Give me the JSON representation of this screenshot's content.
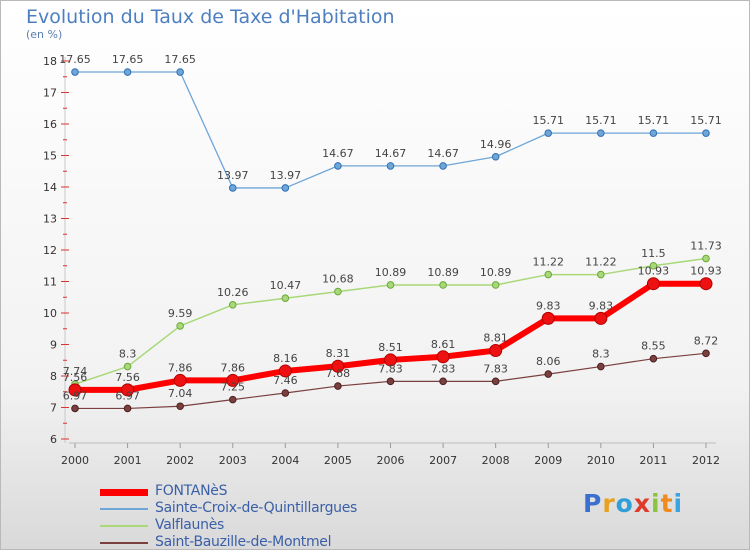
{
  "title": "Evolution du Taux de Taxe d'Habitation",
  "subtitle": "(en %)",
  "logo": {
    "text": "Proxiti",
    "letters": [
      {
        "ch": "P",
        "color": "#3b6fd0"
      },
      {
        "ch": "r",
        "color": "#e8a020"
      },
      {
        "ch": "o",
        "color": "#2f9fd8"
      },
      {
        "ch": "x",
        "color": "#e03a2a"
      },
      {
        "ch": "i",
        "color": "#8bc53f"
      },
      {
        "ch": "t",
        "color": "#f08a1c"
      },
      {
        "ch": "i",
        "color": "#3aa3e0"
      }
    ]
  },
  "chart_data": {
    "type": "line",
    "title": "Evolution du Taux de Taxe d'Habitation",
    "ylabel": "(en %)",
    "x": [
      "2000",
      "2001",
      "2002",
      "2003",
      "2004",
      "2005",
      "2006",
      "2007",
      "2008",
      "2009",
      "2010",
      "2011",
      "2012"
    ],
    "ylim": [
      6,
      18
    ],
    "yticks": [
      6,
      7,
      8,
      9,
      10,
      11,
      12,
      13,
      14,
      15,
      16,
      17,
      18
    ],
    "grid": false,
    "legend": "bottom-left",
    "series": [
      {
        "name": "FONTANèS",
        "color": "#ff0000",
        "width": 6,
        "labels": [
          "7.56",
          "7.56",
          "7.86",
          "7.86",
          "8.16",
          "8.31",
          "8.51",
          "8.61",
          "8.81",
          "9.83",
          "9.83",
          "10.93",
          "10.93"
        ],
        "values": [
          7.56,
          7.56,
          7.86,
          7.86,
          8.16,
          8.31,
          8.51,
          8.61,
          8.81,
          9.83,
          9.83,
          10.93,
          10.93
        ]
      },
      {
        "name": "Sainte-Croix-de-Quintillargues",
        "color": "#6ea6d8",
        "width": 1.3,
        "labels": [
          "17.65",
          "17.65",
          "17.65",
          "13.97",
          "13.97",
          "14.67",
          "14.67",
          "14.67",
          "14.96",
          "15.71",
          "15.71",
          "15.71",
          "15.71"
        ],
        "values": [
          17.65,
          17.65,
          17.65,
          13.97,
          13.97,
          14.67,
          14.67,
          14.67,
          14.96,
          15.71,
          15.71,
          15.71,
          15.71
        ]
      },
      {
        "name": "Valflaunès",
        "color": "#a8d878",
        "width": 1.5,
        "labels": [
          "7.74",
          "8.3",
          "9.59",
          "10.26",
          "10.47",
          "10.68",
          "10.89",
          "10.89",
          "10.89",
          "11.22",
          "11.22",
          "11.5",
          "11.73"
        ],
        "values": [
          7.74,
          8.3,
          9.59,
          10.26,
          10.47,
          10.68,
          10.89,
          10.89,
          10.89,
          11.22,
          11.22,
          11.5,
          11.73
        ]
      },
      {
        "name": "Saint-Bauzille-de-Montmel",
        "color": "#7a3f3f",
        "width": 1.2,
        "labels": [
          "6.97",
          "6.97",
          "7.04",
          "7.25",
          "7.46",
          "7.68",
          "7.83",
          "7.83",
          "7.83",
          "8.06",
          "8.3",
          "8.55",
          "8.72"
        ],
        "values": [
          6.97,
          6.97,
          7.04,
          7.25,
          7.46,
          7.68,
          7.83,
          7.83,
          7.83,
          8.06,
          8.3,
          8.55,
          8.72
        ]
      }
    ]
  }
}
